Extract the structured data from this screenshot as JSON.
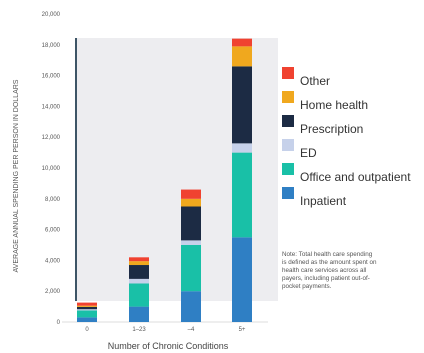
{
  "chart_data": {
    "type": "bar",
    "stacked": true,
    "ylabel": "AVERAGE ANNUAL SPENDING PER PERSON IN DOLLARS",
    "xlabel": "Number of Chronic Conditions",
    "categories": [
      "0",
      "1–23",
      "–4",
      "5+"
    ],
    "ylim": [
      0,
      20000
    ],
    "yticks": [
      "20,000",
      "18,000",
      "16,000",
      "14,000",
      "12,000",
      "10,000",
      "8,000",
      "6,000",
      "4,000",
      "2,000",
      "0"
    ],
    "series": [
      {
        "name": "Inpatient",
        "color": "#2f7fc4",
        "values": [
          300,
          1000,
          2000,
          5500
        ]
      },
      {
        "name": "Office and outpatient",
        "color": "#19c0a7",
        "values": [
          450,
          1500,
          3000,
          5500
        ]
      },
      {
        "name": "ED",
        "color": "#c6d1ea",
        "values": [
          80,
          300,
          300,
          600
        ]
      },
      {
        "name": "Prescription",
        "color": "#1c2b44",
        "values": [
          150,
          900,
          2200,
          5000
        ]
      },
      {
        "name": "Home health",
        "color": "#f0a81e",
        "values": [
          80,
          250,
          500,
          1300
        ]
      },
      {
        "name": "Other",
        "color": "#f04230",
        "values": [
          200,
          250,
          600,
          500
        ]
      }
    ],
    "legend_position": "right",
    "grid": false
  },
  "note": "Note: Total health care spending is defined as the amount spent on health care services across all payers, including patient out-of-pocket payments.",
  "note_lines": [
    "Note: Total health care spending",
    "is defined as the amount spent on",
    "health care services across all",
    "payers, including patient out-of-",
    "pocket payments."
  ]
}
